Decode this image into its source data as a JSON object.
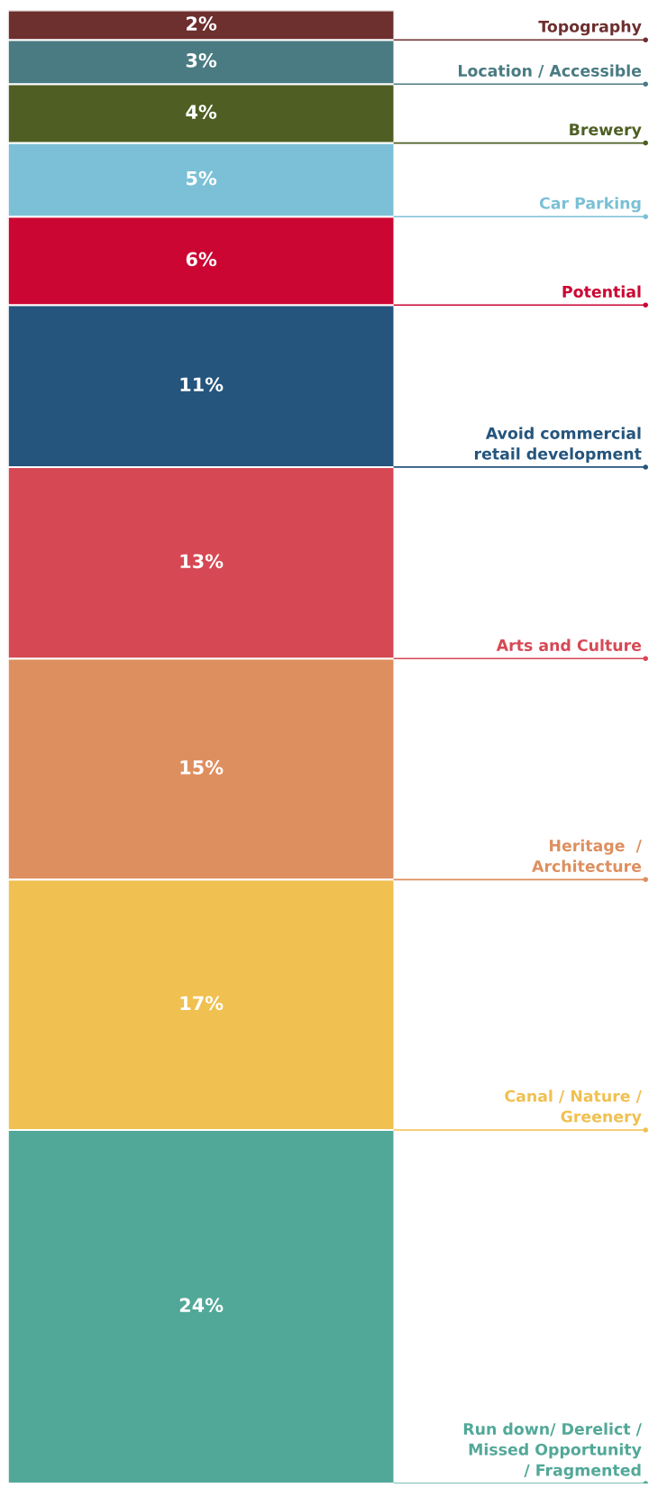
{
  "chart_data": {
    "type": "bar",
    "stacked": true,
    "categories": [
      null
    ],
    "series": [
      {
        "name": "Run down/ Derelict /\nMissed Opportunity\n/ Fragmented",
        "color": "#52a898",
        "values": [
          24
        ],
        "value_labels": [
          "24%"
        ]
      },
      {
        "name": "Canal / Nature /\nGreenery",
        "color": "#f0c050",
        "values": [
          17
        ],
        "value_labels": [
          "17%"
        ]
      },
      {
        "name": "Heritage  /\nArchitecture",
        "color": "#de8f5f",
        "values": [
          15
        ],
        "value_labels": [
          "15%"
        ]
      },
      {
        "name": "Arts and Culture",
        "color": "#d64854",
        "values": [
          13
        ],
        "value_labels": [
          "13%"
        ]
      },
      {
        "name": "Avoid commercial\nretail development",
        "color": "#25557d",
        "values": [
          11
        ],
        "value_labels": [
          "11%"
        ]
      },
      {
        "name": "Potential",
        "color": "#cc0633",
        "values": [
          6
        ],
        "value_labels": [
          "6%"
        ]
      },
      {
        "name": "Car Parking",
        "color": "#7bc0d6",
        "values": [
          5
        ],
        "value_labels": [
          "5%"
        ]
      },
      {
        "name": "Brewery",
        "color": "#4f5f24",
        "values": [
          4
        ],
        "value_labels": [
          "4%"
        ]
      },
      {
        "name": "Location / Accessible",
        "color": "#4a7b82",
        "values": [
          3
        ],
        "value_labels": [
          "3%"
        ]
      },
      {
        "name": "Topography",
        "color": "#6e2f2f",
        "values": [
          2
        ],
        "value_labels": [
          "2%"
        ]
      }
    ]
  }
}
